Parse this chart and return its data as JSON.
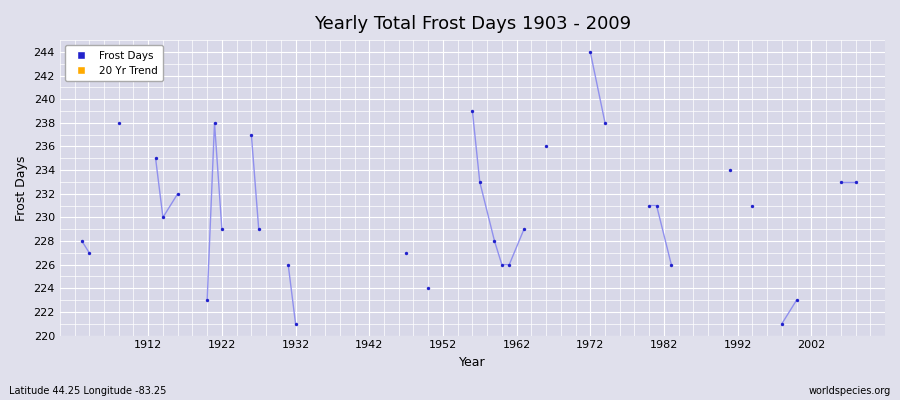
{
  "title": "Yearly Total Frost Days 1903 - 2009",
  "xlabel": "Year",
  "ylabel": "Frost Days",
  "xlim": [
    1900,
    2012
  ],
  "ylim": [
    220,
    245
  ],
  "yticks": [
    220,
    222,
    224,
    226,
    228,
    230,
    232,
    234,
    236,
    238,
    240,
    242,
    244
  ],
  "xticks": [
    1912,
    1922,
    1932,
    1942,
    1952,
    1962,
    1972,
    1982,
    1992,
    2002
  ],
  "background_color": "#e0e0ec",
  "plot_bg_color": "#d8d8e8",
  "grid_color": "#ffffff",
  "frost_color": "#2222cc",
  "line_color": "#8888ee",
  "trend_color": "#ffaa00",
  "subtitle": "Latitude 44.25 Longitude -83.25",
  "watermark": "worldspecies.org",
  "frost_days": [
    [
      1903,
      228
    ],
    [
      1904,
      227
    ],
    [
      1908,
      238
    ],
    [
      1913,
      235
    ],
    [
      1914,
      230
    ],
    [
      1916,
      232
    ],
    [
      1920,
      223
    ],
    [
      1921,
      238
    ],
    [
      1922,
      229
    ],
    [
      1926,
      237
    ],
    [
      1927,
      229
    ],
    [
      1931,
      226
    ],
    [
      1932,
      221
    ],
    [
      1947,
      227
    ],
    [
      1950,
      224
    ],
    [
      1956,
      239
    ],
    [
      1957,
      233
    ],
    [
      1959,
      228
    ],
    [
      1960,
      226
    ],
    [
      1961,
      226
    ],
    [
      1963,
      229
    ],
    [
      1966,
      236
    ],
    [
      1972,
      244
    ],
    [
      1974,
      238
    ],
    [
      1980,
      231
    ],
    [
      1981,
      231
    ],
    [
      1983,
      226
    ],
    [
      1991,
      234
    ],
    [
      1994,
      231
    ],
    [
      1998,
      221
    ],
    [
      2000,
      223
    ],
    [
      2006,
      233
    ],
    [
      2008,
      233
    ]
  ]
}
